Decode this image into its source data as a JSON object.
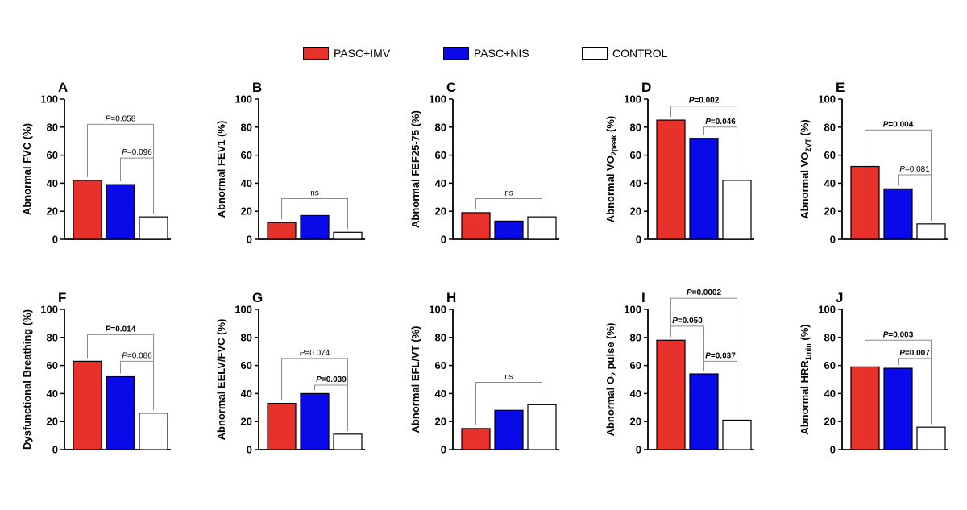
{
  "legend": [
    {
      "name": "PASC+IMV",
      "color": "#e8312a"
    },
    {
      "name": "PASC+NIS",
      "color": "#0a0ae8"
    },
    {
      "name": "CONTROL",
      "color": "#ffffff"
    }
  ],
  "chart_data": [
    {
      "id": "A",
      "type": "bar",
      "ylabel": "Abnormal FVC (%)",
      "categories": [
        "PASC+IMV",
        "PASC+NIS",
        "CONTROL"
      ],
      "values": [
        42,
        39,
        16
      ],
      "ylim": [
        0,
        100
      ],
      "yticks": [
        0,
        20,
        40,
        60,
        80,
        100
      ],
      "annotations": [
        {
          "from": 0,
          "to": 2,
          "y": 82,
          "p": "0.058",
          "bold": false
        },
        {
          "from": 1,
          "to": 2,
          "y": 58,
          "p": "0.096",
          "bold": false
        }
      ]
    },
    {
      "id": "B",
      "type": "bar",
      "ylabel": "Abnormal FEV1 (%)",
      "categories": [
        "PASC+IMV",
        "PASC+NIS",
        "CONTROL"
      ],
      "values": [
        12,
        17,
        5
      ],
      "ylim": [
        0,
        100
      ],
      "yticks": [
        0,
        20,
        40,
        60,
        80,
        100
      ],
      "annotations": [
        {
          "from": 0,
          "to": 2,
          "y": 29,
          "text": "ns",
          "bold": false
        }
      ]
    },
    {
      "id": "C",
      "type": "bar",
      "ylabel": "Abnormal FEF25-75 (%)",
      "categories": [
        "PASC+IMV",
        "PASC+NIS",
        "CONTROL"
      ],
      "values": [
        19,
        13,
        16
      ],
      "ylim": [
        0,
        100
      ],
      "yticks": [
        0,
        20,
        40,
        60,
        80,
        100
      ],
      "annotations": [
        {
          "from": 0,
          "to": 2,
          "y": 29,
          "text": "ns",
          "bold": false
        }
      ]
    },
    {
      "id": "D",
      "type": "bar",
      "ylabel": "Abnormal VO2peak (%)",
      "ylabel_main": "Abnormal VO",
      "ylabel_sub": "2peak",
      "ylabel_tail": " (%)",
      "categories": [
        "PASC+IMV",
        "PASC+NIS",
        "CONTROL"
      ],
      "values": [
        85,
        72,
        42
      ],
      "ylim": [
        0,
        100
      ],
      "yticks": [
        0,
        20,
        40,
        60,
        80,
        100
      ],
      "annotations": [
        {
          "from": 0,
          "to": 2,
          "y": 95,
          "p": "0.002",
          "bold": true
        },
        {
          "from": 1,
          "to": 2,
          "y": 80,
          "p": "0.046",
          "bold": true
        }
      ]
    },
    {
      "id": "E",
      "type": "bar",
      "ylabel": "Abnormal VO2VT (%)",
      "ylabel_main": "Abnormal VO",
      "ylabel_sub": "2VT",
      "ylabel_tail": " (%)",
      "categories": [
        "PASC+IMV",
        "PASC+NIS",
        "CONTROL"
      ],
      "values": [
        52,
        36,
        11
      ],
      "ylim": [
        0,
        100
      ],
      "yticks": [
        0,
        20,
        40,
        60,
        80,
        100
      ],
      "annotations": [
        {
          "from": 0,
          "to": 2,
          "y": 78,
          "p": "0.004",
          "bold": true
        },
        {
          "from": 1,
          "to": 2,
          "y": 46,
          "p": "0.081",
          "bold": false
        }
      ]
    },
    {
      "id": "F",
      "type": "bar",
      "ylabel": "Dysfunctional Breathing (%)",
      "categories": [
        "PASC+IMV",
        "PASC+NIS",
        "CONTROL"
      ],
      "values": [
        63,
        52,
        26
      ],
      "ylim": [
        0,
        100
      ],
      "yticks": [
        0,
        20,
        40,
        60,
        80,
        100
      ],
      "annotations": [
        {
          "from": 0,
          "to": 2,
          "y": 82,
          "p": "0.014",
          "bold": true
        },
        {
          "from": 1,
          "to": 2,
          "y": 63,
          "p": "0.086",
          "bold": false
        }
      ]
    },
    {
      "id": "G",
      "type": "bar",
      "ylabel": "Abnormal EELV/FVC (%)",
      "categories": [
        "PASC+IMV",
        "PASC+NIS",
        "CONTROL"
      ],
      "values": [
        33,
        40,
        11
      ],
      "ylim": [
        0,
        100
      ],
      "yticks": [
        0,
        20,
        40,
        60,
        80,
        100
      ],
      "annotations": [
        {
          "from": 0,
          "to": 2,
          "y": 65,
          "p": "0.074",
          "bold": false
        },
        {
          "from": 1,
          "to": 2,
          "y": 46,
          "p": "0.039",
          "bold": true
        }
      ]
    },
    {
      "id": "H",
      "type": "bar",
      "ylabel": "Abnormal EFL/VT (%)",
      "categories": [
        "PASC+IMV",
        "PASC+NIS",
        "CONTROL"
      ],
      "values": [
        15,
        28,
        32
      ],
      "ylim": [
        0,
        100
      ],
      "yticks": [
        0,
        20,
        40,
        60,
        80,
        100
      ],
      "annotations": [
        {
          "from": 0,
          "to": 2,
          "y": 48,
          "text": "ns",
          "bold": false
        }
      ]
    },
    {
      "id": "I",
      "type": "bar",
      "ylabel": "Abnormal O2 pulse (%)",
      "ylabel_main": "Abnormal O",
      "ylabel_sub": "2",
      "ylabel_tail": " pulse (%)",
      "categories": [
        "PASC+IMV",
        "PASC+NIS",
        "CONTROL"
      ],
      "values": [
        78,
        54,
        21
      ],
      "ylim": [
        0,
        100
      ],
      "yticks": [
        0,
        20,
        40,
        60,
        80,
        100
      ],
      "annotations": [
        {
          "from": 0,
          "to": 2,
          "y": 108,
          "p": "0.0002",
          "bold": true
        },
        {
          "from": 0,
          "to": 1,
          "y": 88,
          "p": "0.050",
          "bold": true
        },
        {
          "from": 1,
          "to": 2,
          "y": 63,
          "p": "0.037",
          "bold": true
        }
      ]
    },
    {
      "id": "J",
      "type": "bar",
      "ylabel": "Abnormal HRR1min (%)",
      "ylabel_main": "Abnormal HRR",
      "ylabel_sub": "1min",
      "ylabel_tail": " (%)",
      "categories": [
        "PASC+IMV",
        "PASC+NIS",
        "CONTROL"
      ],
      "values": [
        59,
        58,
        16
      ],
      "ylim": [
        0,
        100
      ],
      "yticks": [
        0,
        20,
        40,
        60,
        80,
        100
      ],
      "annotations": [
        {
          "from": 0,
          "to": 2,
          "y": 78,
          "p": "0.003",
          "bold": true
        },
        {
          "from": 1,
          "to": 2,
          "y": 65,
          "p": "0.007",
          "bold": true
        }
      ]
    }
  ]
}
